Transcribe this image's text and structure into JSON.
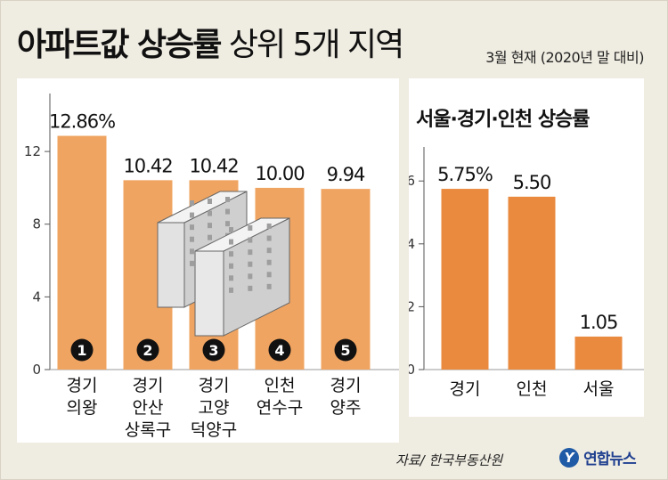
{
  "header": {
    "title_bold": "아파트값 상승률",
    "title_rest": "상위 5개 지역",
    "subtitle": "3월 현재 (2020년 말 대비)"
  },
  "footer": {
    "source": "자료/ 한국부동산원",
    "logo_text": "연합뉴스",
    "logo_mark": "Y"
  },
  "colors": {
    "bar_left": "#f0a461",
    "bar_right": "#ea8a3f",
    "badge": "#111111"
  },
  "chart_data": [
    {
      "type": "bar",
      "title": "",
      "categories": [
        [
          "경기",
          "의왕"
        ],
        [
          "경기",
          "안산",
          "상록구"
        ],
        [
          "경기",
          "고양",
          "덕양구"
        ],
        [
          "인천",
          "연수구"
        ],
        [
          "경기",
          "양주"
        ]
      ],
      "values": [
        12.86,
        10.42,
        10.42,
        10.0,
        9.94
      ],
      "value_labels": [
        "12.86%",
        "10.42",
        "10.42",
        "10.00",
        "9.94"
      ],
      "ranks": [
        "1",
        "2",
        "3",
        "4",
        "5"
      ],
      "yticks": [
        0,
        4,
        8,
        12
      ],
      "ylim": [
        0,
        14.7
      ],
      "icon": "apartment-building-icon"
    },
    {
      "type": "bar",
      "title": "서울·경기·인천 상승률",
      "categories": [
        [
          "경기"
        ],
        [
          "인천"
        ],
        [
          "서울"
        ]
      ],
      "values": [
        5.75,
        5.5,
        1.05
      ],
      "value_labels": [
        "5.75%",
        "5.50",
        "1.05"
      ],
      "yticks": [
        0,
        2,
        4,
        6
      ],
      "ylim": [
        0,
        6.8
      ]
    }
  ]
}
